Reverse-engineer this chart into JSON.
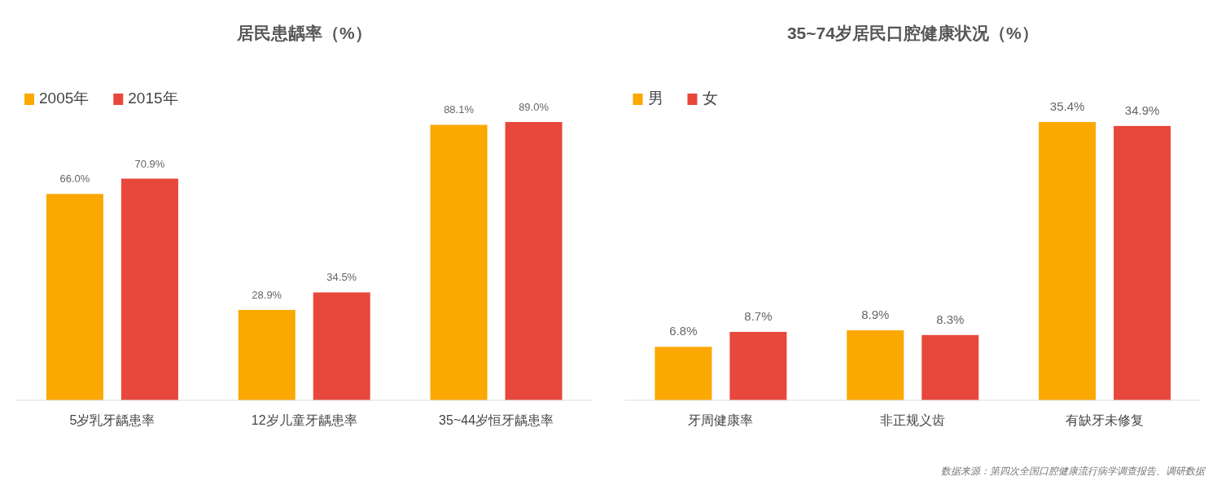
{
  "chart_data": [
    {
      "type": "bar",
      "title": "居民患龋率（%）",
      "categories": [
        "5岁乳牙龋患率",
        "12岁儿童牙龋患率",
        "35~44岁恒牙龋患率"
      ],
      "series": [
        {
          "name": "2005年",
          "color": "#fba800",
          "values": [
            66.0,
            28.9,
            88.1
          ],
          "value_labels": [
            "66.0%",
            "28.9%",
            "88.1%"
          ]
        },
        {
          "name": "2015年",
          "color": "#e8473b",
          "values": [
            70.9,
            34.5,
            89.0
          ],
          "value_labels": [
            "70.9%",
            "34.5%",
            "89.0%"
          ]
        }
      ],
      "legend": "top left"
    },
    {
      "type": "bar",
      "title": "35~74岁居民口腔健康状况（%）",
      "categories": [
        "牙周健康率",
        "非正规义齿",
        "有缺牙未修复"
      ],
      "series": [
        {
          "name": "男",
          "color": "#fba800",
          "values": [
            6.8,
            8.9,
            35.4
          ],
          "value_labels": [
            "6.8%",
            "8.9%",
            "35.4%"
          ]
        },
        {
          "name": "女",
          "color": "#e8473b",
          "values": [
            8.7,
            8.3,
            34.9
          ],
          "value_labels": [
            "8.7%",
            "8.3%",
            "34.9%"
          ]
        }
      ],
      "legend": "top left",
      "annotations": [
        "数据来源：第四次全国口腔健康流行病学调查报告、调研数据"
      ]
    }
  ]
}
